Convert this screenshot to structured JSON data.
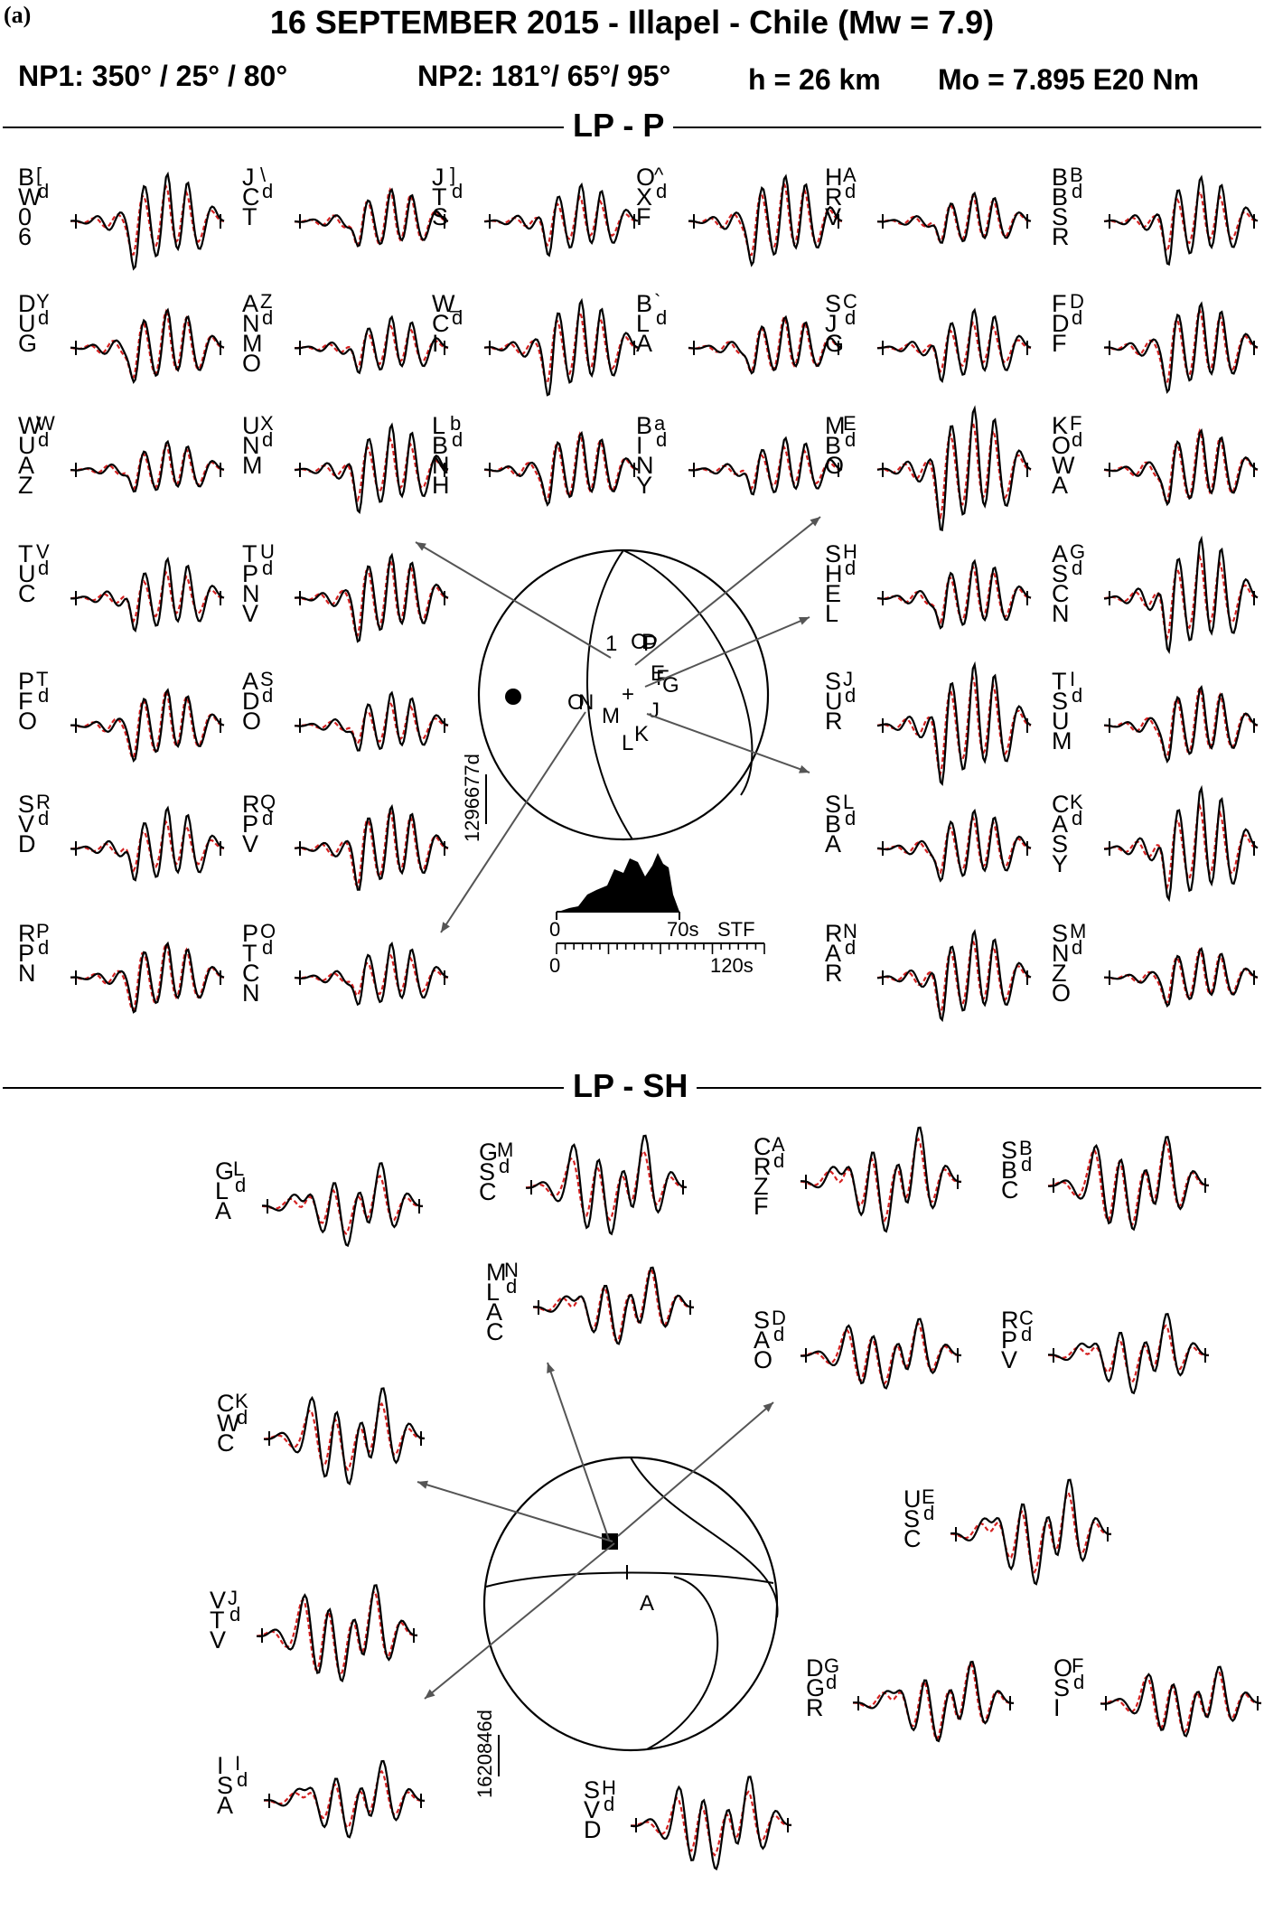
{
  "panel_label": "(a)",
  "title": "16 SEPTEMBER 2015 - Illapel - Chile (Mw = 7.9)",
  "params": {
    "np1": "NP1: 350° / 25° / 80°",
    "np2": "NP2: 181°/ 65°/ 95°",
    "depth": "h = 26 km",
    "moment": "Mo = 7.895 E20 Nm"
  },
  "sections": {
    "p": "LP - P",
    "sh": "LP - SH"
  },
  "p_stations": [
    {
      "name": [
        "B",
        "W",
        "0",
        "6"
      ],
      "sup": "[",
      "sub": "d"
    },
    {
      "name": [
        "J",
        "C",
        "T"
      ],
      "sup": "\\",
      "sub": "d"
    },
    {
      "name": [
        "J",
        "T",
        "S"
      ],
      "sup": "]",
      "sub": "d"
    },
    {
      "name": [
        "O",
        "X",
        "F"
      ],
      "sup": "^",
      "sub": "d"
    },
    {
      "name": [
        "H",
        "R",
        "V"
      ],
      "sup": "A",
      "sub": "d"
    },
    {
      "name": [
        "B",
        "B",
        "S",
        "R"
      ],
      "sup": "B",
      "sub": "d"
    },
    {
      "name": [
        "D",
        "U",
        "G"
      ],
      "sup": "Y",
      "sub": "d"
    },
    {
      "name": [
        "A",
        "N",
        "M",
        "O"
      ],
      "sup": "Z",
      "sub": "d"
    },
    {
      "name": [
        "W",
        "C",
        "I"
      ],
      "sup": "_",
      "sub": "d"
    },
    {
      "name": [
        "B",
        "L",
        "A"
      ],
      "sup": "`",
      "sub": "d"
    },
    {
      "name": [
        "S",
        "J",
        "G"
      ],
      "sup": "C",
      "sub": "d"
    },
    {
      "name": [
        "F",
        "D",
        "F"
      ],
      "sup": "D",
      "sub": "d"
    },
    {
      "name": [
        "W",
        "U",
        "A",
        "Z"
      ],
      "sup": "W",
      "sub": "d"
    },
    {
      "name": [
        "U",
        "N",
        "M"
      ],
      "sup": "X",
      "sub": "d"
    },
    {
      "name": [
        "L",
        "B",
        "N",
        "H"
      ],
      "sup": "b",
      "sub": "d"
    },
    {
      "name": [
        "B",
        "I",
        "N",
        "Y"
      ],
      "sup": "a",
      "sub": "d"
    },
    {
      "name": [
        "M",
        "B",
        "O"
      ],
      "sup": "E",
      "sub": "d"
    },
    {
      "name": [
        "K",
        "O",
        "W",
        "A"
      ],
      "sup": "F",
      "sub": "d"
    },
    {
      "name": [
        "T",
        "U",
        "C"
      ],
      "sup": "V",
      "sub": "d"
    },
    {
      "name": [
        "T",
        "P",
        "N",
        "V"
      ],
      "sup": "U",
      "sub": "d"
    },
    {
      "name": [
        "S",
        "H",
        "E",
        "L"
      ],
      "sup": "H",
      "sub": "d"
    },
    {
      "name": [
        "A",
        "S",
        "C",
        "N"
      ],
      "sup": "G",
      "sub": "d"
    },
    {
      "name": [
        "P",
        "F",
        "O"
      ],
      "sup": "T",
      "sub": "d"
    },
    {
      "name": [
        "A",
        "D",
        "O"
      ],
      "sup": "S",
      "sub": "d"
    },
    {
      "name": [
        "S",
        "U",
        "R"
      ],
      "sup": "J",
      "sub": "d"
    },
    {
      "name": [
        "T",
        "S",
        "U",
        "M"
      ],
      "sup": "I",
      "sub": "d"
    },
    {
      "name": [
        "S",
        "V",
        "D"
      ],
      "sup": "R",
      "sub": "d"
    },
    {
      "name": [
        "R",
        "P",
        "V"
      ],
      "sup": "Q",
      "sub": "d"
    },
    {
      "name": [
        "S",
        "B",
        "A"
      ],
      "sup": "L",
      "sub": "d"
    },
    {
      "name": [
        "C",
        "A",
        "S",
        "Y"
      ],
      "sup": "K",
      "sub": "d"
    },
    {
      "name": [
        "R",
        "P",
        "N"
      ],
      "sup": "P",
      "sub": "d"
    },
    {
      "name": [
        "P",
        "T",
        "C",
        "N"
      ],
      "sup": "O",
      "sub": "d"
    },
    {
      "name": [
        "R",
        "A",
        "R"
      ],
      "sup": "N",
      "sub": "d"
    },
    {
      "name": [
        "S",
        "N",
        "Z",
        "O"
      ],
      "sup": "M",
      "sub": "d"
    }
  ],
  "sh_stations": [
    {
      "name": [
        "G",
        "L",
        "A"
      ],
      "sup": "L",
      "sub": "d"
    },
    {
      "name": [
        "G",
        "S",
        "C"
      ],
      "sup": "M",
      "sub": "d"
    },
    {
      "name": [
        "C",
        "R",
        "Z",
        "F"
      ],
      "sup": "A",
      "sub": "d"
    },
    {
      "name": [
        "S",
        "B",
        "C"
      ],
      "sup": "B",
      "sub": "d"
    },
    {
      "name": [
        "M",
        "L",
        "A",
        "C"
      ],
      "sup": "N",
      "sub": "d"
    },
    {
      "name": [
        "S",
        "A",
        "O"
      ],
      "sup": "D",
      "sub": "d"
    },
    {
      "name": [
        "R",
        "P",
        "V"
      ],
      "sup": "C",
      "sub": "d"
    },
    {
      "name": [
        "C",
        "W",
        "C"
      ],
      "sup": "K",
      "sub": "d"
    },
    {
      "name": [
        "U",
        "S",
        "C"
      ],
      "sup": "E",
      "sub": "d"
    },
    {
      "name": [
        "V",
        "T",
        "V"
      ],
      "sup": "J",
      "sub": "d"
    },
    {
      "name": [
        "D",
        "G",
        "R"
      ],
      "sup": "G",
      "sub": "d"
    },
    {
      "name": [
        "O",
        "S",
        "I"
      ],
      "sup": "F",
      "sub": "d"
    },
    {
      "name": [
        "I",
        "S",
        "A"
      ],
      "sup": "I",
      "sub": "d"
    },
    {
      "name": [
        "S",
        "V",
        "D"
      ],
      "sup": "H",
      "sub": "d"
    }
  ],
  "p_sphere": {
    "markers": [
      "1",
      "C",
      "D",
      "E",
      "F",
      "G",
      "J",
      "K",
      "L",
      "M",
      "N",
      "O",
      "P"
    ],
    "amplitude_scale": "1296677d",
    "stf": {
      "label": "STF",
      "stf_end": "70s",
      "axis_start": "0",
      "axis_end": "120s",
      "stf_start": "0"
    }
  },
  "sh_sphere": {
    "markers": [
      "A"
    ],
    "amplitude_scale": "1620846d"
  },
  "colors": {
    "observed": "#000000",
    "synthetic": "#d42020",
    "compression": "#000000"
  }
}
